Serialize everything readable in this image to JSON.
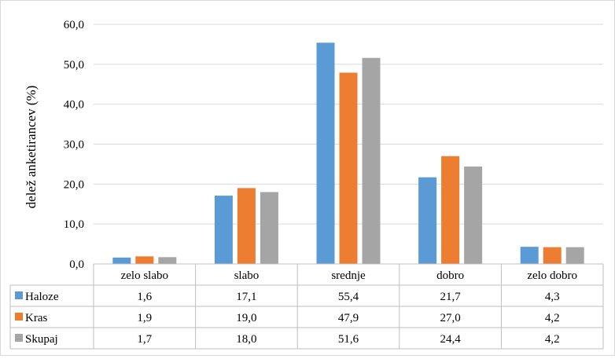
{
  "chart_data": {
    "type": "bar",
    "title": "",
    "ylabel": "delež anketirancev  (%)",
    "xlabel": "",
    "ylim": [
      0,
      60
    ],
    "yticks": [
      0,
      10,
      20,
      30,
      40,
      50,
      60
    ],
    "ytick_labels": [
      "0,0",
      "10,0",
      "20,0",
      "30,0",
      "40,0",
      "50,0",
      "60,0"
    ],
    "grid": true,
    "legend": "data-table",
    "categories": [
      "zelo slabo",
      "slabo",
      "srednje",
      "dobro",
      "zelo dobro"
    ],
    "series": [
      {
        "name": "Haloze",
        "color": "#5b9bd5",
        "values": [
          1.6,
          17.1,
          55.4,
          21.7,
          4.3
        ],
        "labels": [
          "1,6",
          "17,1",
          "55,4",
          "21,7",
          "4,3"
        ]
      },
      {
        "name": "Kras",
        "color": "#ed7d31",
        "values": [
          1.9,
          19.0,
          47.9,
          27.0,
          4.2
        ],
        "labels": [
          "1,9",
          "19,0",
          "47,9",
          "27,0",
          "4,2"
        ]
      },
      {
        "name": "Skupaj",
        "color": "#a5a5a5",
        "values": [
          1.7,
          18.0,
          51.6,
          24.4,
          4.2
        ],
        "labels": [
          "1,7",
          "18,0",
          "51,6",
          "24,4",
          "4,2"
        ]
      }
    ]
  }
}
